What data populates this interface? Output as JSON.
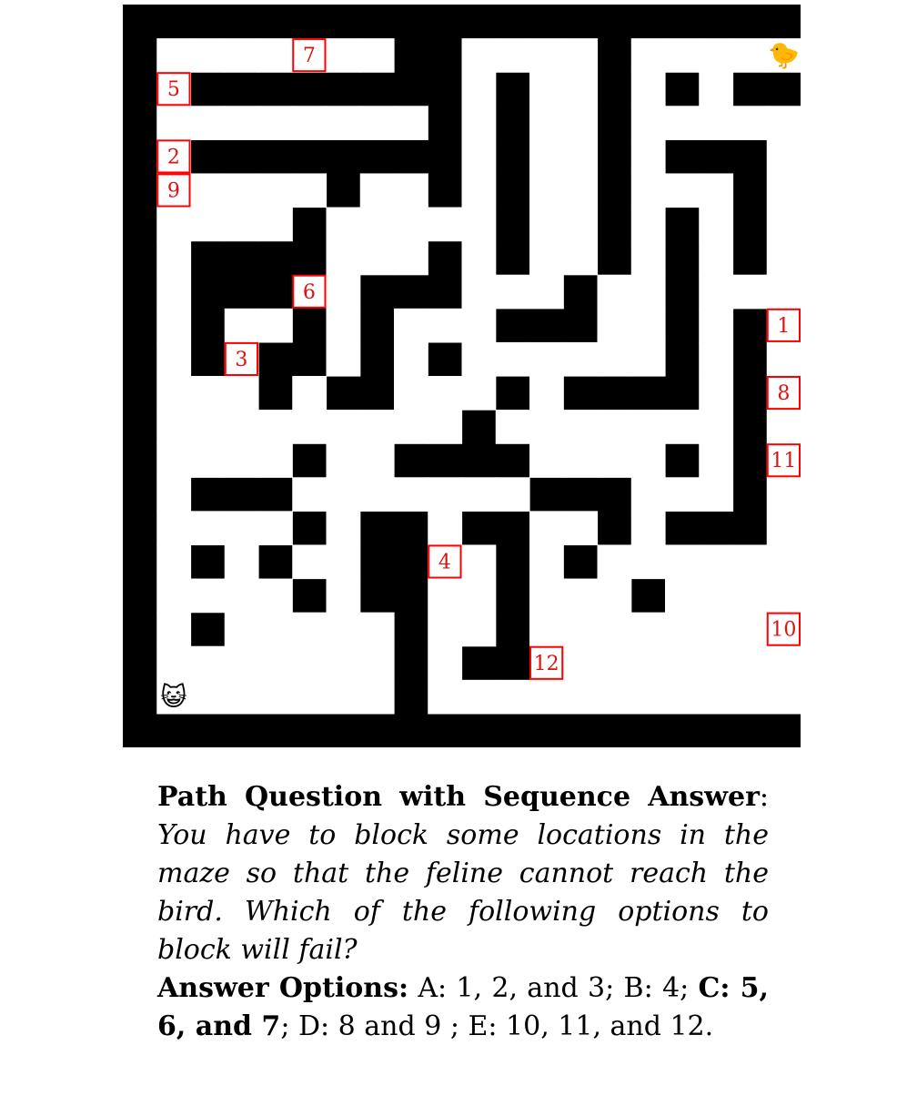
{
  "maze": {
    "cols": 20,
    "rows": 22,
    "wall_color": "#000000",
    "path_color": "#ffffff",
    "marker_color": "#ff0000",
    "cat": {
      "icon": "cat-face-icon",
      "glyph": "😺",
      "cell": [
        1,
        20
      ]
    },
    "bird": {
      "icon": "baby-chick-icon",
      "glyph": "🐤",
      "cell": [
        19,
        1
      ]
    },
    "open_cells": [
      [
        1,
        1
      ],
      [
        2,
        1
      ],
      [
        3,
        1
      ],
      [
        4,
        1
      ],
      [
        5,
        1
      ],
      [
        6,
        1
      ],
      [
        7,
        1
      ],
      [
        10,
        1
      ],
      [
        11,
        1
      ],
      [
        12,
        1
      ],
      [
        13,
        1
      ],
      [
        15,
        1
      ],
      [
        16,
        1
      ],
      [
        17,
        1
      ],
      [
        18,
        1
      ],
      [
        19,
        1
      ],
      [
        1,
        2
      ],
      [
        10,
        2
      ],
      [
        12,
        2
      ],
      [
        13,
        2
      ],
      [
        15,
        2
      ],
      [
        17,
        2
      ],
      [
        1,
        3
      ],
      [
        2,
        3
      ],
      [
        3,
        3
      ],
      [
        4,
        3
      ],
      [
        5,
        3
      ],
      [
        6,
        3
      ],
      [
        7,
        3
      ],
      [
        8,
        3
      ],
      [
        10,
        3
      ],
      [
        12,
        3
      ],
      [
        13,
        3
      ],
      [
        15,
        3
      ],
      [
        16,
        3
      ],
      [
        17,
        3
      ],
      [
        18,
        3
      ],
      [
        19,
        3
      ],
      [
        1,
        4
      ],
      [
        10,
        4
      ],
      [
        12,
        4
      ],
      [
        13,
        4
      ],
      [
        15,
        4
      ],
      [
        19,
        4
      ],
      [
        1,
        5
      ],
      [
        2,
        5
      ],
      [
        3,
        5
      ],
      [
        4,
        5
      ],
      [
        5,
        5
      ],
      [
        7,
        5
      ],
      [
        8,
        5
      ],
      [
        10,
        5
      ],
      [
        12,
        5
      ],
      [
        13,
        5
      ],
      [
        15,
        5
      ],
      [
        16,
        5
      ],
      [
        17,
        5
      ],
      [
        19,
        5
      ],
      [
        1,
        6
      ],
      [
        2,
        6
      ],
      [
        3,
        6
      ],
      [
        4,
        6
      ],
      [
        6,
        6
      ],
      [
        7,
        6
      ],
      [
        8,
        6
      ],
      [
        9,
        6
      ],
      [
        10,
        6
      ],
      [
        12,
        6
      ],
      [
        13,
        6
      ],
      [
        15,
        6
      ],
      [
        17,
        6
      ],
      [
        19,
        6
      ],
      [
        1,
        7
      ],
      [
        6,
        7
      ],
      [
        7,
        7
      ],
      [
        8,
        7
      ],
      [
        10,
        7
      ],
      [
        12,
        7
      ],
      [
        13,
        7
      ],
      [
        15,
        7
      ],
      [
        17,
        7
      ],
      [
        19,
        7
      ],
      [
        1,
        8
      ],
      [
        6,
        8
      ],
      [
        10,
        8
      ],
      [
        11,
        8
      ],
      [
        12,
        8
      ],
      [
        14,
        8
      ],
      [
        15,
        8
      ],
      [
        17,
        8
      ],
      [
        18,
        8
      ],
      [
        19,
        8
      ],
      [
        1,
        9
      ],
      [
        3,
        9
      ],
      [
        4,
        9
      ],
      [
        6,
        9
      ],
      [
        8,
        9
      ],
      [
        9,
        9
      ],
      [
        10,
        9
      ],
      [
        14,
        9
      ],
      [
        15,
        9
      ],
      [
        17,
        9
      ],
      [
        19,
        9
      ],
      [
        1,
        10
      ],
      [
        3,
        10
      ],
      [
        6,
        10
      ],
      [
        8,
        10
      ],
      [
        10,
        10
      ],
      [
        11,
        10
      ],
      [
        12,
        10
      ],
      [
        13,
        10
      ],
      [
        14,
        10
      ],
      [
        15,
        10
      ],
      [
        17,
        10
      ],
      [
        19,
        10
      ],
      [
        1,
        11
      ],
      [
        2,
        11
      ],
      [
        3,
        11
      ],
      [
        5,
        11
      ],
      [
        8,
        11
      ],
      [
        9,
        11
      ],
      [
        10,
        11
      ],
      [
        12,
        11
      ],
      [
        17,
        11
      ],
      [
        19,
        11
      ],
      [
        1,
        12
      ],
      [
        2,
        12
      ],
      [
        3,
        12
      ],
      [
        4,
        12
      ],
      [
        5,
        12
      ],
      [
        6,
        12
      ],
      [
        7,
        12
      ],
      [
        8,
        12
      ],
      [
        9,
        12
      ],
      [
        11,
        12
      ],
      [
        12,
        12
      ],
      [
        13,
        12
      ],
      [
        14,
        12
      ],
      [
        15,
        12
      ],
      [
        16,
        12
      ],
      [
        17,
        12
      ],
      [
        19,
        12
      ],
      [
        1,
        13
      ],
      [
        2,
        13
      ],
      [
        3,
        13
      ],
      [
        4,
        13
      ],
      [
        6,
        13
      ],
      [
        7,
        13
      ],
      [
        12,
        13
      ],
      [
        13,
        13
      ],
      [
        14,
        13
      ],
      [
        15,
        13
      ],
      [
        17,
        13
      ],
      [
        19,
        13
      ],
      [
        1,
        14
      ],
      [
        5,
        14
      ],
      [
        6,
        14
      ],
      [
        7,
        14
      ],
      [
        8,
        14
      ],
      [
        9,
        14
      ],
      [
        10,
        14
      ],
      [
        11,
        14
      ],
      [
        15,
        14
      ],
      [
        16,
        14
      ],
      [
        17,
        14
      ],
      [
        19,
        14
      ],
      [
        1,
        15
      ],
      [
        2,
        15
      ],
      [
        3,
        15
      ],
      [
        4,
        15
      ],
      [
        6,
        15
      ],
      [
        9,
        15
      ],
      [
        12,
        15
      ],
      [
        13,
        15
      ],
      [
        15,
        15
      ],
      [
        19,
        15
      ],
      [
        1,
        16
      ],
      [
        3,
        16
      ],
      [
        5,
        16
      ],
      [
        6,
        16
      ],
      [
        9,
        16
      ],
      [
        10,
        16
      ],
      [
        12,
        16
      ],
      [
        14,
        16
      ],
      [
        15,
        16
      ],
      [
        16,
        16
      ],
      [
        17,
        16
      ],
      [
        18,
        16
      ],
      [
        19,
        16
      ],
      [
        1,
        17
      ],
      [
        2,
        17
      ],
      [
        3,
        17
      ],
      [
        4,
        17
      ],
      [
        6,
        17
      ],
      [
        9,
        17
      ],
      [
        10,
        17
      ],
      [
        12,
        17
      ],
      [
        13,
        17
      ],
      [
        14,
        17
      ],
      [
        16,
        17
      ],
      [
        17,
        17
      ],
      [
        18,
        17
      ],
      [
        19,
        17
      ],
      [
        1,
        18
      ],
      [
        3,
        18
      ],
      [
        4,
        18
      ],
      [
        5,
        18
      ],
      [
        6,
        18
      ],
      [
        7,
        18
      ],
      [
        9,
        18
      ],
      [
        10,
        18
      ],
      [
        12,
        18
      ],
      [
        13,
        18
      ],
      [
        14,
        18
      ],
      [
        15,
        18
      ],
      [
        16,
        18
      ],
      [
        17,
        18
      ],
      [
        18,
        18
      ],
      [
        19,
        18
      ],
      [
        1,
        19
      ],
      [
        2,
        19
      ],
      [
        3,
        19
      ],
      [
        4,
        19
      ],
      [
        5,
        19
      ],
      [
        6,
        19
      ],
      [
        7,
        19
      ],
      [
        9,
        19
      ],
      [
        12,
        19
      ],
      [
        13,
        19
      ],
      [
        14,
        19
      ],
      [
        15,
        19
      ],
      [
        16,
        19
      ],
      [
        17,
        19
      ],
      [
        18,
        19
      ],
      [
        19,
        19
      ],
      [
        1,
        20
      ],
      [
        2,
        20
      ],
      [
        3,
        20
      ],
      [
        4,
        20
      ],
      [
        5,
        20
      ],
      [
        6,
        20
      ],
      [
        7,
        20
      ],
      [
        9,
        20
      ],
      [
        10,
        20
      ],
      [
        11,
        20
      ],
      [
        12,
        20
      ],
      [
        13,
        20
      ],
      [
        14,
        20
      ],
      [
        15,
        20
      ],
      [
        16,
        20
      ],
      [
        17,
        20
      ],
      [
        18,
        20
      ],
      [
        19,
        20
      ]
    ],
    "markers": [
      {
        "label": "1",
        "cell": [
          19,
          9
        ]
      },
      {
        "label": "2",
        "cell": [
          1,
          4
        ]
      },
      {
        "label": "3",
        "cell": [
          3,
          10
        ]
      },
      {
        "label": "4",
        "cell": [
          9,
          16
        ]
      },
      {
        "label": "5",
        "cell": [
          1,
          2
        ]
      },
      {
        "label": "6",
        "cell": [
          5,
          8
        ]
      },
      {
        "label": "7",
        "cell": [
          5,
          1
        ]
      },
      {
        "label": "8",
        "cell": [
          19,
          11
        ]
      },
      {
        "label": "9",
        "cell": [
          1,
          5
        ]
      },
      {
        "label": "10",
        "cell": [
          19,
          18
        ]
      },
      {
        "label": "11",
        "cell": [
          19,
          13
        ]
      },
      {
        "label": "12",
        "cell": [
          12,
          19
        ]
      }
    ]
  },
  "question": {
    "title": "Path Question with Sequence Answer",
    "title_suffix": ":",
    "prompt": "You have to block some locations in the maze so that the feline cannot reach the bird. Which of the following options to block will fail?",
    "answer_label": "Answer Options:",
    "option_a": "A: 1, 2, and 3; B: 4;",
    "option_c": "C: 5, 6, and 7",
    "option_rest": "; D: 8 and 9 ; E: 10, 11, and 12."
  }
}
